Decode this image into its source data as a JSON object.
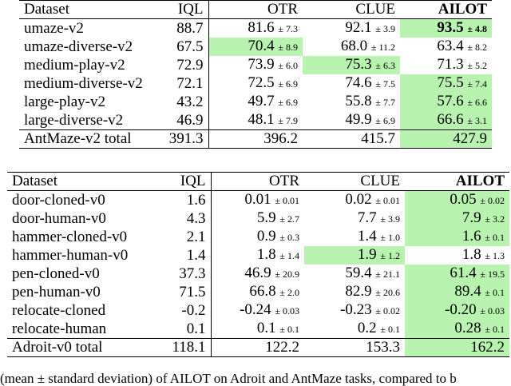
{
  "table1": {
    "header": [
      "Dataset",
      "IQL",
      "OTR",
      "CLUE",
      "AILOT"
    ],
    "rows": [
      {
        "name": "umaze-v2",
        "iql": "88.7",
        "otr": {
          "v": "81.6",
          "s": "± 7.3"
        },
        "clue": {
          "v": "92.1",
          "s": "± 3.9"
        },
        "ailot": {
          "v": "93.5",
          "s": "± 4.8"
        }
      },
      {
        "name": "umaze-diverse-v2",
        "iql": "67.5",
        "otr": {
          "v": "70.4",
          "s": "± 8.9"
        },
        "clue": {
          "v": "68.0",
          "s": "± 11.2"
        },
        "ailot": {
          "v": "63.4",
          "s": "± 8.2"
        }
      },
      {
        "name": "medium-play-v2",
        "iql": "72.9",
        "otr": {
          "v": "73.9",
          "s": "± 6.0"
        },
        "clue": {
          "v": "75.3",
          "s": "± 6.3"
        },
        "ailot": {
          "v": "71.3",
          "s": "± 5.2"
        }
      },
      {
        "name": "medium-diverse-v2",
        "iql": "72.1",
        "otr": {
          "v": "72.5",
          "s": "± 6.9"
        },
        "clue": {
          "v": "74.6",
          "s": "± 7.5"
        },
        "ailot": {
          "v": "75.5",
          "s": "± 7.4"
        }
      },
      {
        "name": "large-play-v2",
        "iql": "43.2",
        "otr": {
          "v": "49.7",
          "s": "± 6.9"
        },
        "clue": {
          "v": "55.8",
          "s": "± 7.7"
        },
        "ailot": {
          "v": "57.6",
          "s": "± 6.6"
        }
      },
      {
        "name": "large-diverse-v2",
        "iql": "46.9",
        "otr": {
          "v": "48.1",
          "s": "± 7.9"
        },
        "clue": {
          "v": "49.9",
          "s": "± 6.9"
        },
        "ailot": {
          "v": "66.6",
          "s": "± 3.1"
        }
      }
    ],
    "total": {
      "name": "AntMaze-v2 total",
      "iql": "391.3",
      "otr": "396.2",
      "clue": "415.7",
      "ailot": "427.9"
    }
  },
  "table2": {
    "header": [
      "Dataset",
      "IQL",
      "OTR",
      "CLUE",
      "AILOT"
    ],
    "rows": [
      {
        "name": "door-cloned-v0",
        "iql": "1.6",
        "otr": {
          "v": "0.01",
          "s": "± 0.01"
        },
        "clue": {
          "v": "0.02",
          "s": "± 0.01"
        },
        "ailot": {
          "v": "0.05",
          "s": "± 0.02"
        }
      },
      {
        "name": "door-human-v0",
        "iql": "4.3",
        "otr": {
          "v": "5.9",
          "s": "± 2.7"
        },
        "clue": {
          "v": "7.7",
          "s": "± 3.9"
        },
        "ailot": {
          "v": "7.9",
          "s": "± 3.2"
        }
      },
      {
        "name": "hammer-cloned-v0",
        "iql": "2.1",
        "otr": {
          "v": "0.9",
          "s": "± 0.3"
        },
        "clue": {
          "v": "1.4",
          "s": "± 1.0"
        },
        "ailot": {
          "v": "1.6",
          "s": "± 0.1"
        }
      },
      {
        "name": "hammer-human-v0",
        "iql": "1.4",
        "otr": {
          "v": "1.8",
          "s": "± 1.4"
        },
        "clue": {
          "v": "1.9",
          "s": "± 1.2"
        },
        "ailot": {
          "v": "1.8",
          "s": "± 1.3"
        }
      },
      {
        "name": "pen-cloned-v0",
        "iql": "37.3",
        "otr": {
          "v": "46.9",
          "s": "± 20.9"
        },
        "clue": {
          "v": "59.4",
          "s": "± 21.1"
        },
        "ailot": {
          "v": "61.4",
          "s": "± 19.5"
        }
      },
      {
        "name": "pen-human-v0",
        "iql": "71.5",
        "otr": {
          "v": "66.8",
          "s": "± 2.0"
        },
        "clue": {
          "v": "82.9",
          "s": "± 20.6"
        },
        "ailot": {
          "v": "89.4",
          "s": "± 0.1"
        }
      },
      {
        "name": "relocate-cloned",
        "iql": "-0.2",
        "otr": {
          "v": "-0.24",
          "s": "± 0.03"
        },
        "clue": {
          "v": "-0.23",
          "s": "± 0.02"
        },
        "ailot": {
          "v": "-0.20",
          "s": "± 0.03"
        }
      },
      {
        "name": "relocate-human",
        "iql": "0.1",
        "otr": {
          "v": "0.1",
          "s": "± 0.1"
        },
        "clue": {
          "v": "0.2",
          "s": "± 0.1"
        },
        "ailot": {
          "v": "0.28",
          "s": "± 0.1"
        }
      }
    ],
    "total": {
      "name": "Adroit-v0 total",
      "iql": "118.1",
      "otr": "122.2",
      "clue": "153.3",
      "ailot": "162.2"
    }
  },
  "caption": "(mean ± standard deviation) of AILOT on Adroit and AntMaze tasks, compared to b",
  "highlight_color": "#b8f3b0"
}
